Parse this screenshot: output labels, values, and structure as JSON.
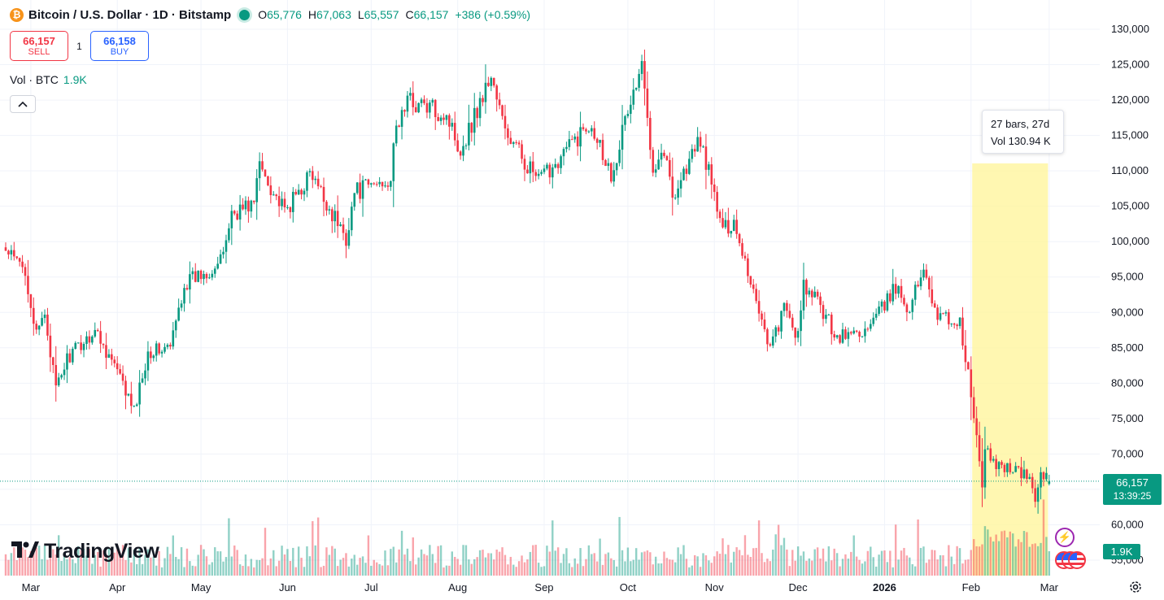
{
  "header": {
    "symbol_title": "Bitcoin / U.S. Dollar · 1D · Bitstamp",
    "icon": "bitcoin-icon",
    "open_label": "O",
    "open": "65,776",
    "high_label": "H",
    "high": "67,063",
    "low_label": "L",
    "low": "65,557",
    "close_label": "C",
    "close": "66,157",
    "change": "+386 (+0.59%)"
  },
  "trade": {
    "sell_price": "66,157",
    "sell_label": "SELL",
    "quantity": "1",
    "buy_price": "66,158",
    "buy_label": "BUY"
  },
  "volume_legend": {
    "label": "Vol · BTC",
    "value": "1.9K"
  },
  "range_tooltip": {
    "bars": "27 bars, 27d",
    "volume": "Vol 130.94 K"
  },
  "price_tag": {
    "price": "66,157",
    "countdown": "13:39:25"
  },
  "volume_tag": "1.9K",
  "branding": {
    "name": "TradingView"
  },
  "colors": {
    "up": "#089981",
    "down": "#f23645",
    "highlight": "#fff59d",
    "buy": "#2962ff"
  },
  "chart_data": {
    "type": "candlestick",
    "symbol": "Bitcoin / U.S. Dollar",
    "interval": "1D",
    "exchange": "Bitstamp",
    "y_ticks": [
      "130,000",
      "125,000",
      "120,000",
      "115,000",
      "110,000",
      "105,000",
      "100,000",
      "95,000",
      "90,000",
      "85,000",
      "80,000",
      "75,000",
      "70,000",
      "65,000",
      "60,000",
      "55,000"
    ],
    "ylim": [
      55000,
      130000
    ],
    "x_ticks": [
      "Mar",
      "Apr",
      "May",
      "Jun",
      "Jul",
      "Aug",
      "Sep",
      "Oct",
      "Nov",
      "Dec",
      "2026",
      "Feb",
      "Mar"
    ],
    "close_path": [
      {
        "date": "2025-02-20",
        "close": 98500
      },
      {
        "date": "2025-02-27",
        "close": 96000
      },
      {
        "date": "2025-03-03",
        "close": 86500
      },
      {
        "date": "2025-03-06",
        "close": 90000
      },
      {
        "date": "2025-03-10",
        "close": 79000
      },
      {
        "date": "2025-03-14",
        "close": 83500
      },
      {
        "date": "2025-03-24",
        "close": 87500
      },
      {
        "date": "2025-03-31",
        "close": 82500
      },
      {
        "date": "2025-04-07",
        "close": 76000
      },
      {
        "date": "2025-04-12",
        "close": 84500
      },
      {
        "date": "2025-04-20",
        "close": 85000
      },
      {
        "date": "2025-04-25",
        "close": 94000
      },
      {
        "date": "2025-05-08",
        "close": 97000
      },
      {
        "date": "2025-05-12",
        "close": 104000
      },
      {
        "date": "2025-05-20",
        "close": 105500
      },
      {
        "date": "2025-05-22",
        "close": 111000
      },
      {
        "date": "2025-05-31",
        "close": 104000
      },
      {
        "date": "2025-06-09",
        "close": 109500
      },
      {
        "date": "2025-06-17",
        "close": 104000
      },
      {
        "date": "2025-06-22",
        "close": 100500
      },
      {
        "date": "2025-06-25",
        "close": 107000
      },
      {
        "date": "2025-07-08",
        "close": 109000
      },
      {
        "date": "2025-07-10",
        "close": 116000
      },
      {
        "date": "2025-07-14",
        "close": 120000
      },
      {
        "date": "2025-07-28",
        "close": 118000
      },
      {
        "date": "2025-08-02",
        "close": 113000
      },
      {
        "date": "2025-08-13",
        "close": 123500
      },
      {
        "date": "2025-08-18",
        "close": 115500
      },
      {
        "date": "2025-08-30",
        "close": 108500
      },
      {
        "date": "2025-09-10",
        "close": 113500
      },
      {
        "date": "2025-09-18",
        "close": 117000
      },
      {
        "date": "2025-09-25",
        "close": 109500
      },
      {
        "date": "2025-10-01",
        "close": 118500
      },
      {
        "date": "2025-10-06",
        "close": 124500
      },
      {
        "date": "2025-10-10",
        "close": 111000
      },
      {
        "date": "2025-10-14",
        "close": 113000
      },
      {
        "date": "2025-10-17",
        "close": 106500
      },
      {
        "date": "2025-10-27",
        "close": 114500
      },
      {
        "date": "2025-11-04",
        "close": 101500
      },
      {
        "date": "2025-11-08",
        "close": 103000
      },
      {
        "date": "2025-11-14",
        "close": 94500
      },
      {
        "date": "2025-11-21",
        "close": 85000
      },
      {
        "date": "2025-11-26",
        "close": 90500
      },
      {
        "date": "2025-12-01",
        "close": 86500
      },
      {
        "date": "2025-12-03",
        "close": 93500
      },
      {
        "date": "2025-12-08",
        "close": 91500
      },
      {
        "date": "2025-12-15",
        "close": 86500
      },
      {
        "date": "2025-12-26",
        "close": 87500
      },
      {
        "date": "2026-01-05",
        "close": 93500
      },
      {
        "date": "2026-01-10",
        "close": 90500
      },
      {
        "date": "2026-01-15",
        "close": 96500
      },
      {
        "date": "2026-01-20",
        "close": 89500
      },
      {
        "date": "2026-01-28",
        "close": 88500
      },
      {
        "date": "2026-02-01",
        "close": 78500
      },
      {
        "date": "2026-02-05",
        "close": 65500
      },
      {
        "date": "2026-02-06",
        "close": 70500
      },
      {
        "date": "2026-02-10",
        "close": 68500
      },
      {
        "date": "2026-02-16",
        "close": 68000
      },
      {
        "date": "2026-02-22",
        "close": 66500
      },
      {
        "date": "2026-02-24",
        "close": 63500
      },
      {
        "date": "2026-02-26",
        "close": 67500
      },
      {
        "date": "2026-03-01",
        "close": 66157
      }
    ],
    "last": {
      "open": 65776,
      "high": 67063,
      "low": 65557,
      "close": 66157
    },
    "highlight_range": {
      "from": "2026-02-02",
      "to": "2026-02-28",
      "bars": 27
    }
  }
}
